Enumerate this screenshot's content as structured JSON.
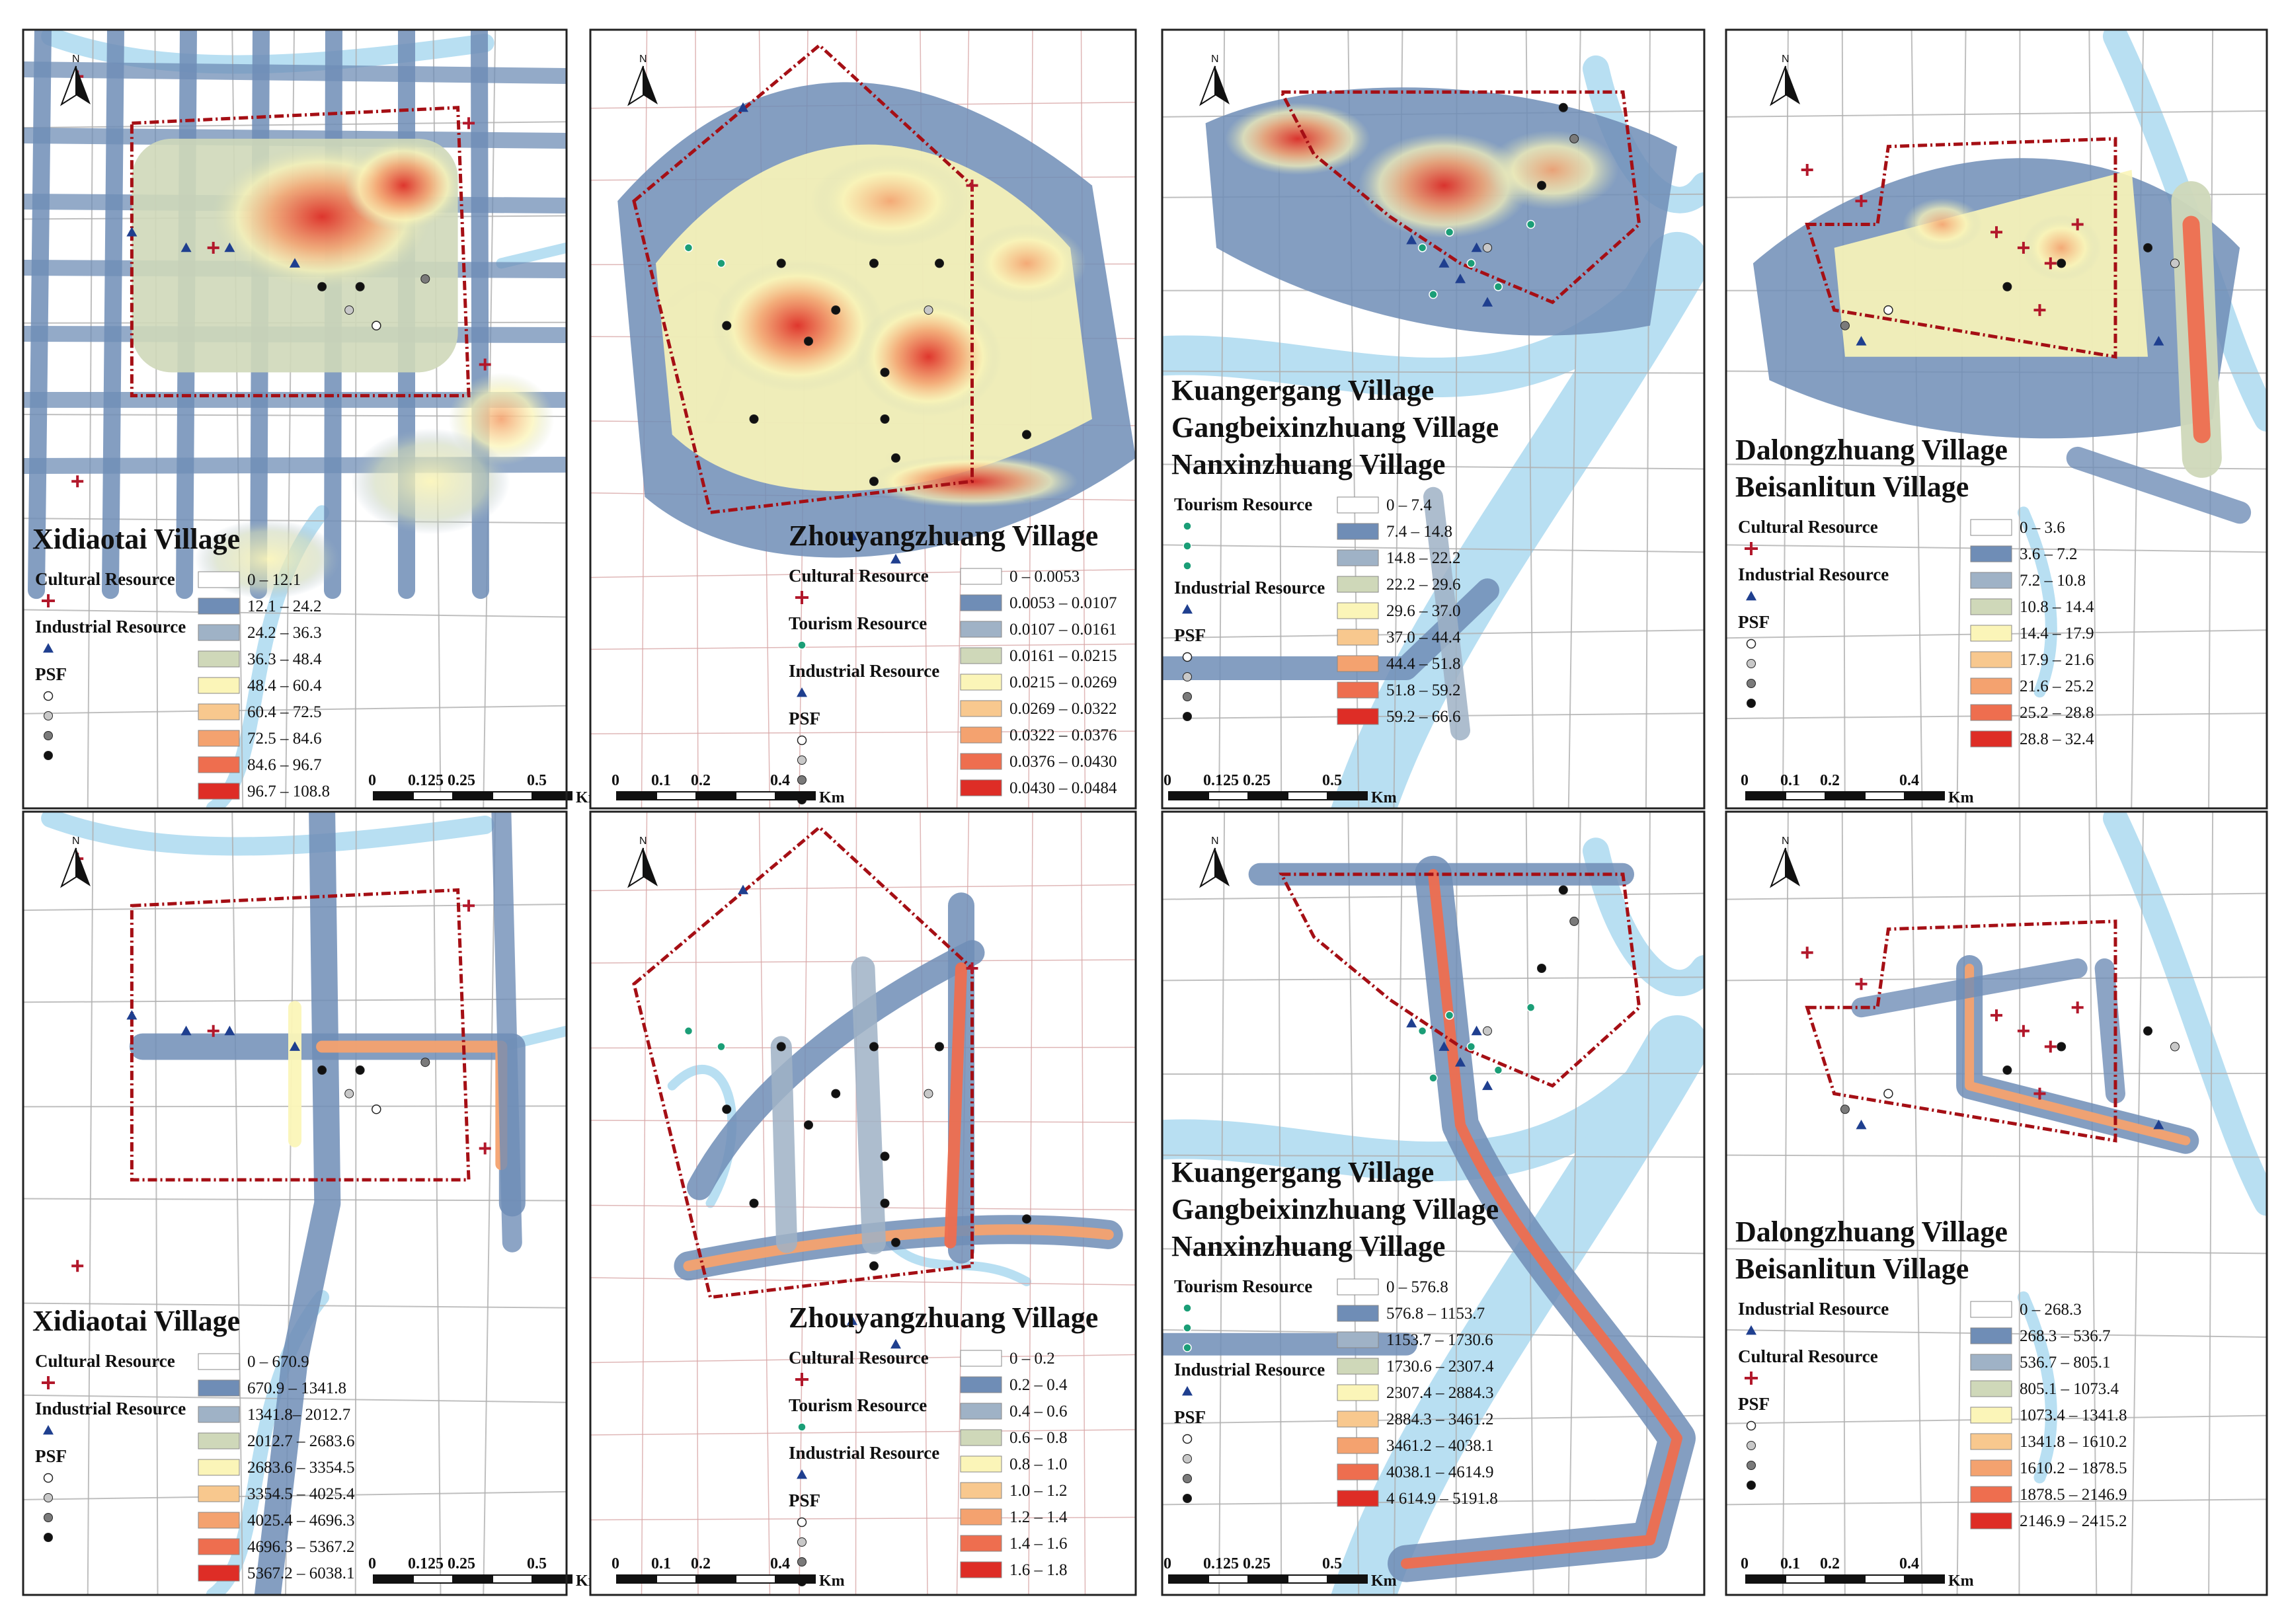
{
  "panels": [
    {
      "id": "p1",
      "row": 0,
      "col": 0,
      "title_lines": [
        "Xidiaotai Village"
      ],
      "legend_groups": [
        {
          "label": "Cultural Resource",
          "symbols": [
            "cross"
          ]
        },
        {
          "label": "Industrial Resource",
          "symbols": [
            "triangle"
          ]
        },
        {
          "label": "PSF",
          "symbols": [
            "psf1",
            "psf2",
            "psf3",
            "psf4"
          ]
        }
      ],
      "ranges": [
        "0 – 12.1",
        "12.1 – 24.2",
        "24.2 – 36.3",
        "36.3 – 48.4",
        "48.4 – 60.4",
        "60.4 – 72.5",
        "72.5 – 84.6",
        "84.6 – 96.7",
        "96.7 – 108.8"
      ],
      "scale_labels": [
        "0",
        "0.125",
        "0.25",
        "0.5"
      ],
      "scale_unit": "Km"
    },
    {
      "id": "p2",
      "row": 0,
      "col": 1,
      "title_lines": [
        "Zhouyangzhuang Village"
      ],
      "legend_groups": [
        {
          "label": "Cultural Resource",
          "symbols": [
            "cross"
          ]
        },
        {
          "label": "Tourism Resource",
          "symbols": [
            "tourism"
          ]
        },
        {
          "label": "Industrial Resource",
          "symbols": [
            "triangle"
          ]
        },
        {
          "label": "PSF",
          "symbols": [
            "psf1",
            "psf2",
            "psf3",
            "psf4"
          ]
        }
      ],
      "ranges": [
        "0 – 0.0053",
        "0.0053 – 0.0107",
        "0.0107 – 0.0161",
        "0.0161 – 0.0215",
        "0.0215 – 0.0269",
        "0.0269 – 0.0322",
        "0.0322 – 0.0376",
        "0.0376 – 0.0430",
        "0.0430 – 0.0484"
      ],
      "scale_labels": [
        "0",
        "0.1",
        "0.2",
        "0.4"
      ],
      "scale_unit": "Km"
    },
    {
      "id": "p3",
      "row": 0,
      "col": 2,
      "title_lines": [
        "Kuangergang Village",
        "Gangbeixinzhuang Village",
        "Nanxinzhuang Village"
      ],
      "legend_groups": [
        {
          "label": "Tourism Resource",
          "symbols": [
            "tourism",
            "tourism",
            "tourism"
          ]
        },
        {
          "label": "Industrial Resource",
          "symbols": [
            "triangle"
          ]
        },
        {
          "label": "PSF",
          "symbols": [
            "psf1",
            "psf2",
            "psf3",
            "psf4"
          ]
        }
      ],
      "ranges": [
        "0 – 7.4",
        "7.4 – 14.8",
        "14.8 – 22.2",
        "22.2 – 29.6",
        "29.6 – 37.0",
        "37.0 – 44.4",
        "44.4 – 51.8",
        "51.8 – 59.2",
        "59.2 – 66.6"
      ],
      "scale_labels": [
        "0",
        "0.125",
        "0.25",
        "0.5"
      ],
      "scale_unit": "Km"
    },
    {
      "id": "p4",
      "row": 0,
      "col": 3,
      "title_lines": [
        "Dalongzhuang Village",
        "Beisanlitun Village"
      ],
      "legend_groups": [
        {
          "label": "Cultural Resource",
          "symbols": [
            "cross"
          ]
        },
        {
          "label": "Industrial Resource",
          "symbols": [
            "triangle"
          ]
        },
        {
          "label": "PSF",
          "symbols": [
            "psf1",
            "psf2",
            "psf3",
            "psf4"
          ]
        }
      ],
      "ranges": [
        "0 – 3.6",
        "3.6 – 7.2",
        "7.2 – 10.8",
        "10.8 – 14.4",
        "14.4 – 17.9",
        "17.9 – 21.6",
        "21.6 – 25.2",
        "25.2 – 28.8",
        "28.8 – 32.4"
      ],
      "scale_labels": [
        "0",
        "0.1",
        "0.2",
        "0.4"
      ],
      "scale_unit": "Km"
    },
    {
      "id": "p5",
      "row": 1,
      "col": 0,
      "title_lines": [
        "Xidiaotai Village"
      ],
      "legend_groups": [
        {
          "label": "Cultural Resource",
          "symbols": [
            "cross"
          ]
        },
        {
          "label": "Industrial Resource",
          "symbols": [
            "triangle"
          ]
        },
        {
          "label": "PSF",
          "symbols": [
            "psf1",
            "psf2",
            "psf3",
            "psf4"
          ]
        }
      ],
      "ranges": [
        "0 – 670.9",
        "670.9 – 1341.8",
        "1341.8– 2012.7",
        "2012.7 – 2683.6",
        "2683.6 – 3354.5",
        "3354.5 – 4025.4",
        "4025.4 – 4696.3",
        "4696.3 – 5367.2",
        "5367.2 – 6038.1"
      ],
      "scale_labels": [
        "0",
        "0.125",
        "0.25",
        "0.5"
      ],
      "scale_unit": "Km"
    },
    {
      "id": "p6",
      "row": 1,
      "col": 1,
      "title_lines": [
        "Zhouyangzhuang Village"
      ],
      "legend_groups": [
        {
          "label": "Cultural Resource",
          "symbols": [
            "cross"
          ]
        },
        {
          "label": "Tourism Resource",
          "symbols": [
            "tourism"
          ]
        },
        {
          "label": "Industrial Resource",
          "symbols": [
            "triangle"
          ]
        },
        {
          "label": "PSF",
          "symbols": [
            "psf1",
            "psf2",
            "psf3",
            "psf4"
          ]
        }
      ],
      "ranges": [
        "0 – 0.2",
        "0.2 – 0.4",
        "0.4 – 0.6",
        "0.6 – 0.8",
        "0.8 – 1.0",
        "1.0 – 1.2",
        "1.2 – 1.4",
        "1.4 – 1.6",
        "1.6 – 1.8"
      ],
      "scale_labels": [
        "0",
        "0.1",
        "0.2",
        "0.4"
      ],
      "scale_unit": "Km"
    },
    {
      "id": "p7",
      "row": 1,
      "col": 2,
      "title_lines": [
        "Kuangergang Village",
        "Gangbeixinzhuang Village",
        "Nanxinzhuang Village"
      ],
      "legend_groups": [
        {
          "label": "Tourism Resource",
          "symbols": [
            "tourism",
            "tourism",
            "tourism"
          ]
        },
        {
          "label": "Industrial Resource",
          "symbols": [
            "triangle"
          ]
        },
        {
          "label": "PSF",
          "symbols": [
            "psf1",
            "psf2",
            "psf3",
            "psf4"
          ]
        }
      ],
      "ranges": [
        "0 – 576.8",
        "576.8 – 1153.7",
        "1153.7 – 1730.6",
        "1730.6 – 2307.4",
        "2307.4 – 2884.3",
        "2884.3 – 3461.2",
        "3461.2 – 4038.1",
        "4038.1 – 4614.9",
        "4 614.9 – 5191.8"
      ],
      "scale_labels": [
        "0",
        "0.125",
        "0.25",
        "0.5"
      ],
      "scale_unit": "Km"
    },
    {
      "id": "p8",
      "row": 1,
      "col": 3,
      "title_lines": [
        "Dalongzhuang Village",
        "Beisanlitun Village"
      ],
      "legend_groups": [
        {
          "label": "Industrial Resource",
          "symbols": [
            "triangle"
          ]
        },
        {
          "label": "Cultural Resource",
          "symbols": [
            "cross"
          ]
        },
        {
          "label": "PSF",
          "symbols": [
            "psf1",
            "psf2",
            "psf3",
            "psf4"
          ]
        }
      ],
      "ranges": [
        "0 – 268.3",
        "268.3 – 536.7",
        "536.7 – 805.1",
        "805.1 – 1073.4",
        "1073.4 – 1341.8",
        "1341.8 – 1610.2",
        "1610.2 – 1878.5",
        "1878.5 – 2146.9",
        "2146.9 – 2415.2"
      ],
      "scale_labels": [
        "0",
        "0.1",
        "0.2",
        "0.4"
      ],
      "scale_unit": "Km"
    }
  ],
  "north_label": "N",
  "colors": {
    "class": [
      "#ffffff",
      "#6f8db6",
      "#9fb2c6",
      "#cfd8b9",
      "#fbf5b8",
      "#f8c88e",
      "#f4a26f",
      "#ee6e4f",
      "#de2d26"
    ],
    "water": "#b8dff2",
    "boundary": "#a50f15",
    "cultural": "#b2182b",
    "industrial": "#1f3f8f",
    "tourism": "#1b9e77",
    "road": "#9a9a9a",
    "redroad": "#e3a3a3",
    "psf": [
      "#ffffff",
      "#c8c8c8",
      "#7a7a7a",
      "#111111"
    ]
  }
}
